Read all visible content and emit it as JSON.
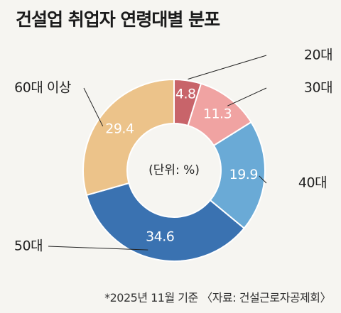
{
  "chart_data": {
    "type": "pie",
    "title": "건설업 취업자 연령대별 분포",
    "unit_label": "(단위: %)",
    "footnote": "*2025년 11월 기준 〈자료: 건설근로자공제회〉",
    "categories": [
      "20대",
      "30대",
      "40대",
      "50대",
      "60대 이상"
    ],
    "values": [
      4.8,
      11.3,
      19.9,
      34.6,
      29.4
    ],
    "value_labels": [
      "4.8",
      "11.3",
      "19.9",
      "34.6",
      "29.4"
    ],
    "colors": [
      "#c8646a",
      "#f0a3a2",
      "#6aaad6",
      "#3a72b1",
      "#ecc38a"
    ],
    "donut": true,
    "start": "top, clockwise"
  }
}
